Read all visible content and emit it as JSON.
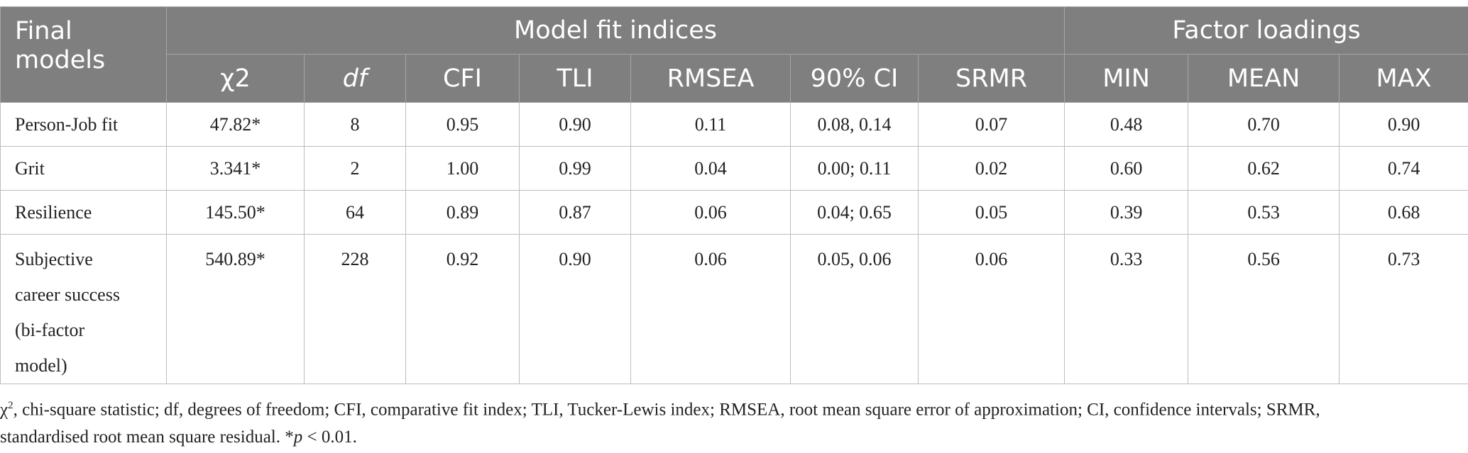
{
  "header": {
    "final_models": "Final models",
    "group_fit": "Model fit indices",
    "group_loadings": "Factor loadings",
    "columns": [
      "χ2",
      "df",
      "CFI",
      "TLI",
      "RMSEA",
      "90% CI",
      "SRMR",
      "MIN",
      "MEAN",
      "MAX"
    ]
  },
  "rows": [
    {
      "model": "Person-Job fit",
      "values": [
        "47.82*",
        "8",
        "0.95",
        "0.90",
        "0.11",
        "0.08, 0.14",
        "0.07",
        "0.48",
        "0.70",
        "0.90"
      ]
    },
    {
      "model": "Grit",
      "values": [
        "3.341*",
        "2",
        "1.00",
        "0.99",
        "0.04",
        "0.00; 0.11",
        "0.02",
        "0.60",
        "0.62",
        "0.74"
      ]
    },
    {
      "model": "Resilience",
      "values": [
        "145.50*",
        "64",
        "0.89",
        "0.87",
        "0.06",
        "0.04; 0.65",
        "0.05",
        "0.39",
        "0.53",
        "0.68"
      ]
    },
    {
      "model_lines": [
        "Subjective",
        "career success",
        "(bi-factor",
        "model)"
      ],
      "values": [
        "540.89*",
        "228",
        "0.92",
        "0.90",
        "0.06",
        "0.05, 0.06",
        "0.06",
        "0.33",
        "0.56",
        "0.73"
      ]
    }
  ],
  "footnote": {
    "chi_symbol": "χ",
    "chi_sup": "2",
    "line1": ", chi-square statistic; df, degrees of freedom; CFI, comparative fit index; TLI, Tucker-Lewis index; RMSEA, root mean square error of approximation; CI, confidence intervals; SRMR,",
    "line2_prefix": "standardised root mean square residual. *",
    "p_symbol": "p",
    "line2_suffix": " < 0.01."
  }
}
